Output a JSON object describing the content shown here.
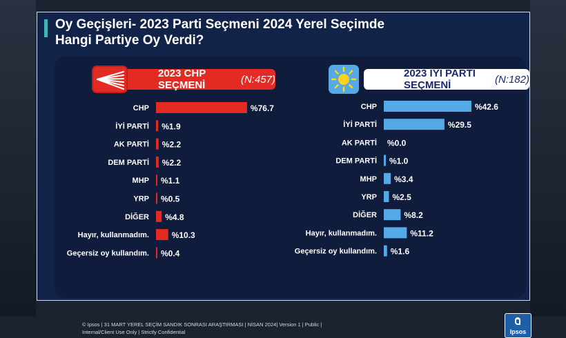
{
  "title_line1": "Oy Geçişleri- 2023 Parti Seçmeni 2024 Yerel Seçimde",
  "title_line2": "Hangi Partiye Oy Verdi?",
  "colors": {
    "chp": "#e32b24",
    "iyi": "#55a9e6",
    "background": "#12234a"
  },
  "chart_data": [
    {
      "type": "bar",
      "orientation": "horizontal",
      "title": "2023 CHP SEÇMENİ",
      "subtitle": "(N:457)",
      "categories": [
        "CHP",
        "İYİ PARTİ",
        "AK PARTİ",
        "DEM PARTİ",
        "MHP",
        "YRP",
        "DİĞER",
        "Hayır, kullanmadım.",
        "Geçersiz oy kullandım."
      ],
      "values": [
        76.7,
        1.9,
        2.2,
        2.2,
        1.1,
        0.5,
        4.8,
        10.3,
        0.4
      ],
      "labels": [
        "%76.7",
        "%1.9",
        "%2.2",
        "%2.2",
        "%1.1",
        "%0.5",
        "%4.8",
        "%10.3",
        "%0.4"
      ],
      "color": "#e32b24"
    },
    {
      "type": "bar",
      "orientation": "horizontal",
      "title": "2023 İYİ PARTİ SEÇMENİ",
      "subtitle": "(N:182)",
      "categories": [
        "CHP",
        "İYİ PARTİ",
        "AK PARTİ",
        "DEM PARTİ",
        "MHP",
        "YRP",
        "DİĞER",
        "Hayır, kullanmadım.",
        "Geçersiz oy kullandım."
      ],
      "values": [
        42.6,
        29.5,
        0.0,
        1.0,
        3.4,
        2.5,
        8.2,
        11.2,
        1.6
      ],
      "labels": [
        "%42.6",
        "%29.5",
        "%0.0",
        "%1.0",
        "%3.4",
        "%2.5",
        "%8.2",
        "%11.2",
        "%1.6"
      ],
      "color": "#55a9e6"
    }
  ],
  "footer_line1": "© Ipsos | 31 MART YEREL SEÇİM SANDIK SONRASI ARAŞTIRMASI | NİSAN 2024| Version 1 | Public |",
  "footer_line2": "Internal/Client Use Only | Strictly Confidential",
  "brand": "Ipsos"
}
